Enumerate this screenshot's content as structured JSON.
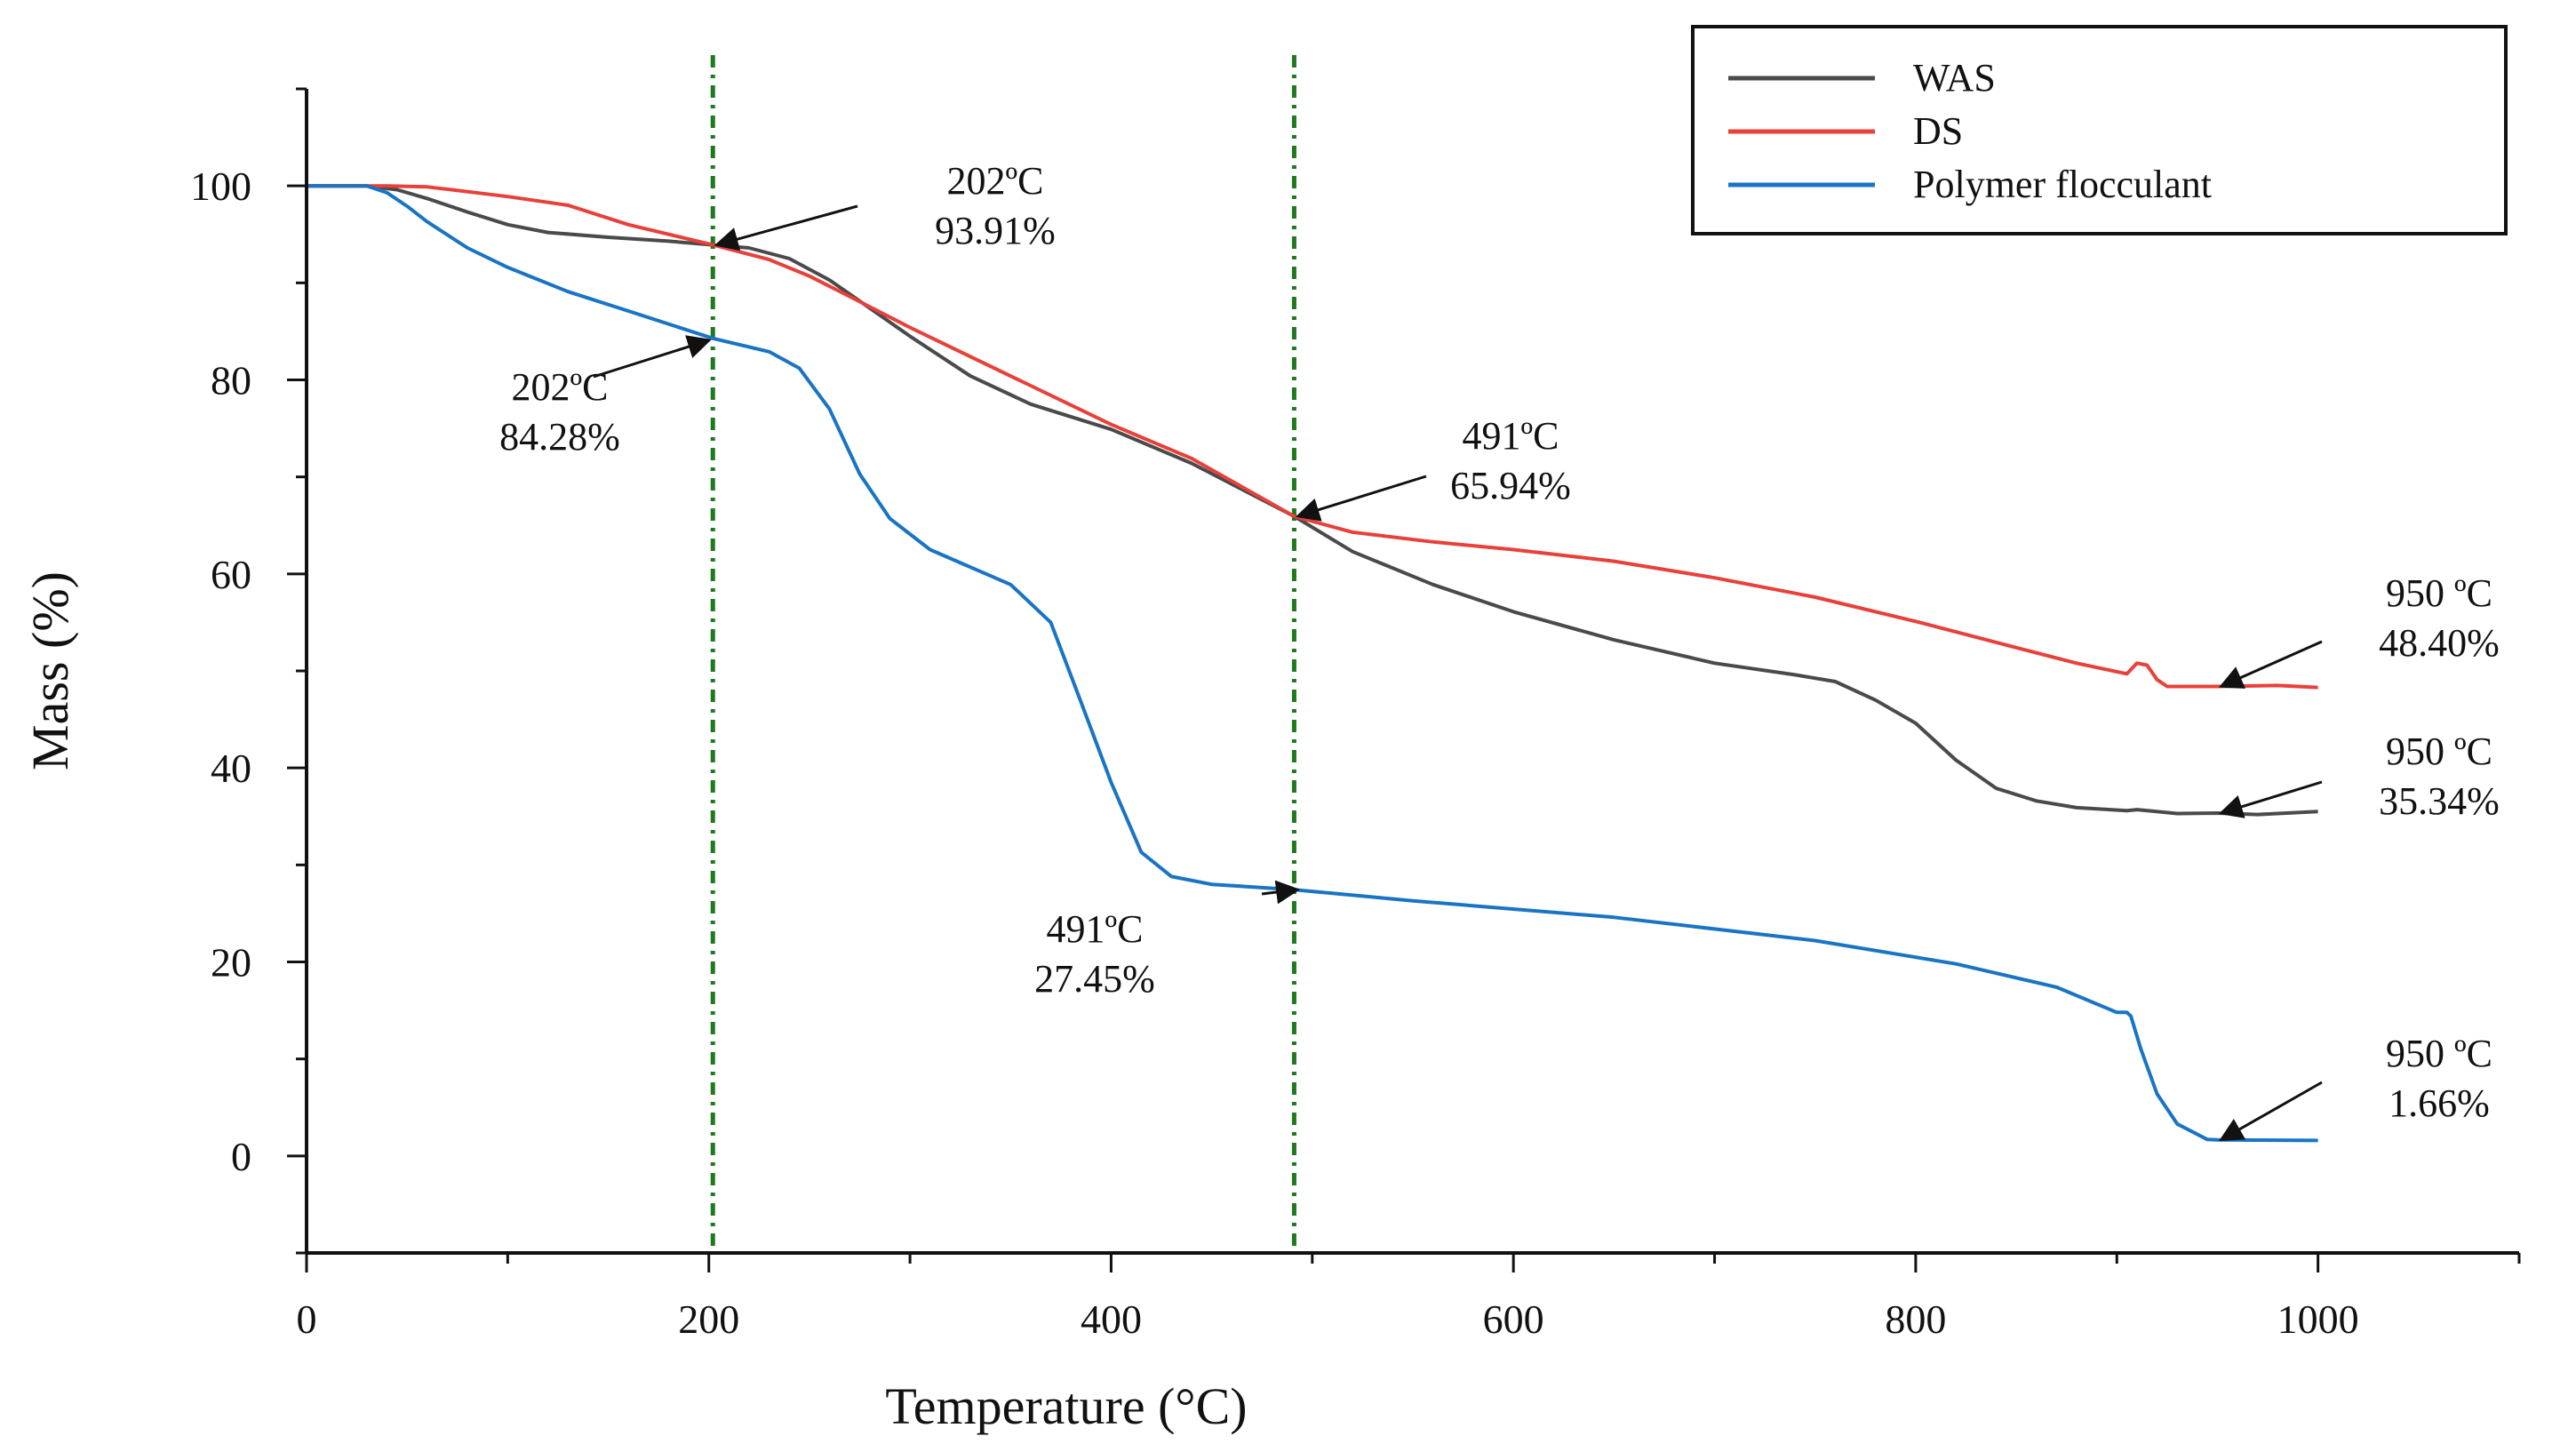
{
  "chart_data": {
    "type": "line",
    "title": "",
    "xlabel": "Temperature (°C)",
    "ylabel": "Mass (%)",
    "xlim": [
      0,
      1100
    ],
    "ylim": [
      -10,
      110
    ],
    "xticks": [
      0,
      200,
      400,
      600,
      800,
      1000
    ],
    "yticks": [
      0,
      20,
      40,
      60,
      80,
      100
    ],
    "legend_position": "top-right",
    "vertical_markers": [
      202,
      491
    ],
    "colors": {
      "WAS": "#4a4a4a",
      "DS": "#e8403a",
      "Polymer flocculant": "#1a74c4",
      "marker": "#1f7a1f",
      "arrow": "#111111"
    },
    "series": [
      {
        "name": "WAS",
        "x": [
          0,
          30,
          45,
          60,
          80,
          100,
          120,
          150,
          180,
          202,
          220,
          240,
          260,
          280,
          300,
          330,
          360,
          400,
          440,
          491,
          520,
          560,
          600,
          650,
          700,
          740,
          760,
          780,
          800,
          820,
          840,
          860,
          880,
          905,
          910,
          930,
          950,
          970,
          1000
        ],
        "y": [
          100,
          100,
          99.6,
          98.7,
          97.3,
          96.0,
          95.2,
          94.7,
          94.3,
          93.91,
          93.6,
          92.5,
          90.3,
          87.4,
          84.5,
          80.4,
          77.5,
          74.9,
          71.4,
          65.94,
          62.3,
          58.9,
          56.1,
          53.2,
          50.8,
          49.6,
          48.9,
          47.0,
          44.6,
          40.8,
          37.9,
          36.6,
          35.9,
          35.6,
          35.7,
          35.3,
          35.34,
          35.2,
          35.5
        ]
      },
      {
        "name": "DS",
        "x": [
          0,
          40,
          60,
          80,
          100,
          130,
          160,
          202,
          230,
          250,
          270,
          300,
          330,
          360,
          400,
          440,
          491,
          520,
          560,
          600,
          650,
          700,
          750,
          800,
          850,
          880,
          905,
          910,
          915,
          920,
          925,
          950,
          980,
          1000
        ],
        "y": [
          100,
          100,
          99.9,
          99.4,
          98.9,
          98.0,
          96.0,
          93.91,
          92.4,
          90.7,
          88.6,
          85.4,
          82.4,
          79.4,
          75.4,
          71.9,
          65.94,
          64.3,
          63.3,
          62.5,
          61.3,
          59.6,
          57.6,
          55.1,
          52.4,
          50.8,
          49.7,
          50.8,
          50.6,
          49.1,
          48.4,
          48.4,
          48.5,
          48.3
        ]
      },
      {
        "name": "Polymer flocculant",
        "x": [
          0,
          30,
          40,
          50,
          60,
          80,
          100,
          130,
          160,
          202,
          230,
          245,
          260,
          275,
          290,
          310,
          330,
          350,
          370,
          385,
          400,
          415,
          430,
          450,
          491,
          550,
          650,
          750,
          820,
          870,
          900,
          905,
          907,
          912,
          920,
          930,
          945,
          950,
          1000
        ],
        "y": [
          100,
          100,
          99.3,
          97.9,
          96.3,
          93.6,
          91.6,
          89.1,
          87.1,
          84.28,
          82.9,
          81.2,
          77.0,
          70.3,
          65.7,
          62.5,
          60.7,
          58.9,
          55.0,
          46.8,
          38.5,
          31.3,
          28.8,
          28.0,
          27.45,
          26.3,
          24.6,
          22.2,
          19.8,
          17.4,
          14.8,
          14.8,
          14.4,
          11.0,
          6.4,
          3.3,
          1.7,
          1.66,
          1.6
        ]
      }
    ],
    "annotations": [
      {
        "series": "WAS/DS",
        "line1": "202ºC",
        "line2": "93.91%",
        "x": 202,
        "y": 93.91
      },
      {
        "series": "Polymer flocculant",
        "line1": "202ºC",
        "line2": "84.28%",
        "x": 202,
        "y": 84.28
      },
      {
        "series": "WAS/DS",
        "line1": "491ºC",
        "line2": "65.94%",
        "x": 491,
        "y": 65.94
      },
      {
        "series": "Polymer flocculant",
        "line1": "491ºC",
        "line2": "27.45%",
        "x": 491,
        "y": 27.45
      },
      {
        "series": "DS",
        "line1": "950 ºC",
        "line2": "48.40%",
        "x": 950,
        "y": 48.4
      },
      {
        "series": "WAS",
        "line1": "950 ºC",
        "line2": "35.34%",
        "x": 950,
        "y": 35.34
      },
      {
        "series": "Polymer flocculant",
        "line1": "950 ºC",
        "line2": "1.66%",
        "x": 950,
        "y": 1.66
      }
    ]
  }
}
